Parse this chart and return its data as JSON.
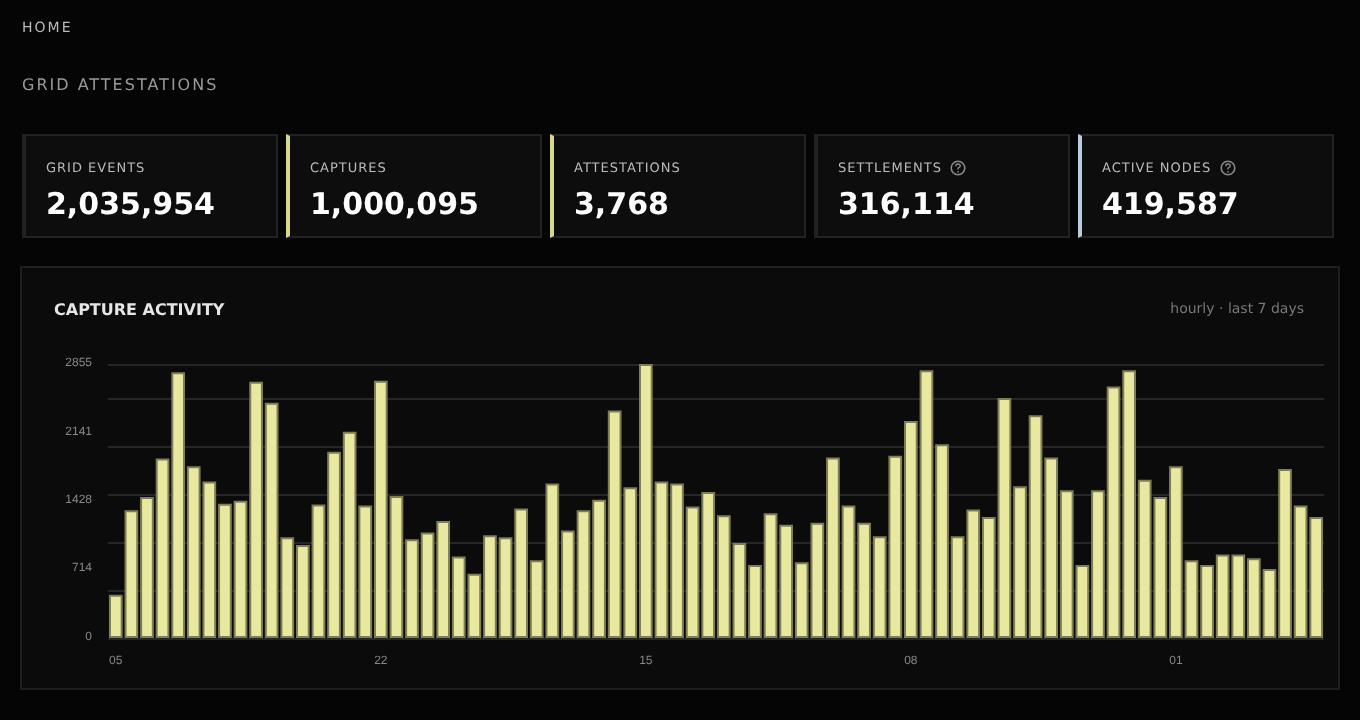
{
  "chart_data": [
    {
      "type": "other",
      "annotations": [
        "HOME",
        "GRID ATTESTATIONS",
        "GRID EVENTS",
        "2,035,954",
        "CAPTURES",
        "1,000,095",
        "ATTESTATIONS",
        "3,768",
        "SETTLEMENTS",
        "316,114",
        "ACTIVE NODES",
        "419,587"
      ]
    },
    {
      "type": "bar",
      "title": "CAPTURE ACTIVITY",
      "subtitle": "hourly · last 7 days",
      "color": "#e8e8a0",
      "categories": [
        "05",
        null,
        null,
        null,
        null,
        null,
        null,
        null,
        null,
        null,
        null,
        null,
        null,
        null,
        null,
        null,
        null,
        "22",
        null,
        null,
        null,
        null,
        null,
        null,
        null,
        null,
        null,
        null,
        null,
        null,
        null,
        null,
        null,
        null,
        "15",
        null,
        null,
        null,
        null,
        null,
        null,
        null,
        null,
        null,
        null,
        null,
        null,
        null,
        null,
        null,
        null,
        "08",
        null,
        null,
        null,
        null,
        null,
        null,
        null,
        null,
        null,
        null,
        null,
        null,
        null,
        null,
        null,
        null,
        "01",
        null,
        null,
        null,
        null,
        null,
        null,
        null,
        null,
        null
      ],
      "values": [
        450,
        1330,
        1470,
        1870,
        2770,
        1790,
        1630,
        1400,
        1430,
        2670,
        2450,
        1050,
        970,
        1390,
        1940,
        2150,
        1380,
        2680,
        1480,
        1030,
        1100,
        1220,
        850,
        670,
        1070,
        1050,
        1350,
        810,
        1610,
        1120,
        1330,
        1440,
        2370,
        1570,
        2855,
        1630,
        1610,
        1370,
        1520,
        1280,
        990,
        760,
        1300,
        1180,
        790,
        1200,
        1880,
        1380,
        1200,
        1060,
        1900,
        2260,
        2790,
        2020,
        1060,
        1340,
        1260,
        2500,
        1580,
        2320,
        1880,
        1540,
        760,
        1540,
        2620,
        2790,
        1650,
        1470,
        1790,
        810,
        760,
        870,
        870,
        830,
        720,
        1760,
        1380,
        1260
      ],
      "ylim": [
        0,
        2855
      ],
      "yticks": [
        0,
        714,
        1428,
        2141,
        2855
      ],
      "grid": "y"
    }
  ]
}
